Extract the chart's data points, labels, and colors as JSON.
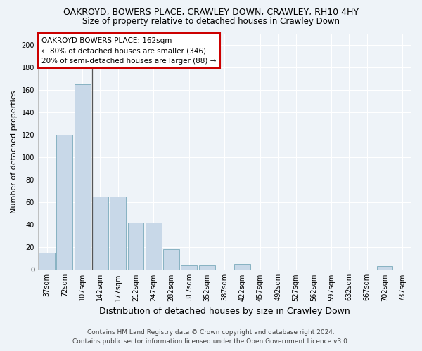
{
  "title": "OAKROYD, BOWERS PLACE, CRAWLEY DOWN, CRAWLEY, RH10 4HY",
  "subtitle": "Size of property relative to detached houses in Crawley Down",
  "xlabel": "Distribution of detached houses by size in Crawley Down",
  "ylabel": "Number of detached properties",
  "bar_values": [
    15,
    120,
    165,
    65,
    65,
    42,
    42,
    18,
    4,
    4,
    0,
    5,
    0,
    0,
    0,
    0,
    0,
    0,
    0,
    3,
    0
  ],
  "x_labels": [
    "37sqm",
    "72sqm",
    "107sqm",
    "142sqm",
    "177sqm",
    "212sqm",
    "247sqm",
    "282sqm",
    "317sqm",
    "352sqm",
    "387sqm",
    "422sqm",
    "457sqm",
    "492sqm",
    "527sqm",
    "562sqm",
    "597sqm",
    "632sqm",
    "667sqm",
    "702sqm",
    "737sqm"
  ],
  "bar_color": "#c8d8e8",
  "bar_edge_color": "#7aaabb",
  "annotation_text": "OAKROYD BOWERS PLACE: 162sqm\n← 80% of detached houses are smaller (346)\n20% of semi-detached houses are larger (88) →",
  "annotation_box_color": "#ffffff",
  "annotation_box_edge_color": "#cc0000",
  "vline_x": 2.55,
  "ylim": [
    0,
    210
  ],
  "yticks": [
    0,
    20,
    40,
    60,
    80,
    100,
    120,
    140,
    160,
    180,
    200
  ],
  "footer_line1": "Contains HM Land Registry data © Crown copyright and database right 2024.",
  "footer_line2": "Contains public sector information licensed under the Open Government Licence v3.0.",
  "bg_color": "#eef3f8",
  "plot_bg_color": "#eef3f8",
  "title_fontsize": 9,
  "subtitle_fontsize": 8.5,
  "xlabel_fontsize": 9,
  "ylabel_fontsize": 8,
  "tick_fontsize": 7,
  "annot_fontsize": 7.5,
  "footer_fontsize": 6.5,
  "grid_color": "#ffffff",
  "spine_color": "#aaaaaa"
}
